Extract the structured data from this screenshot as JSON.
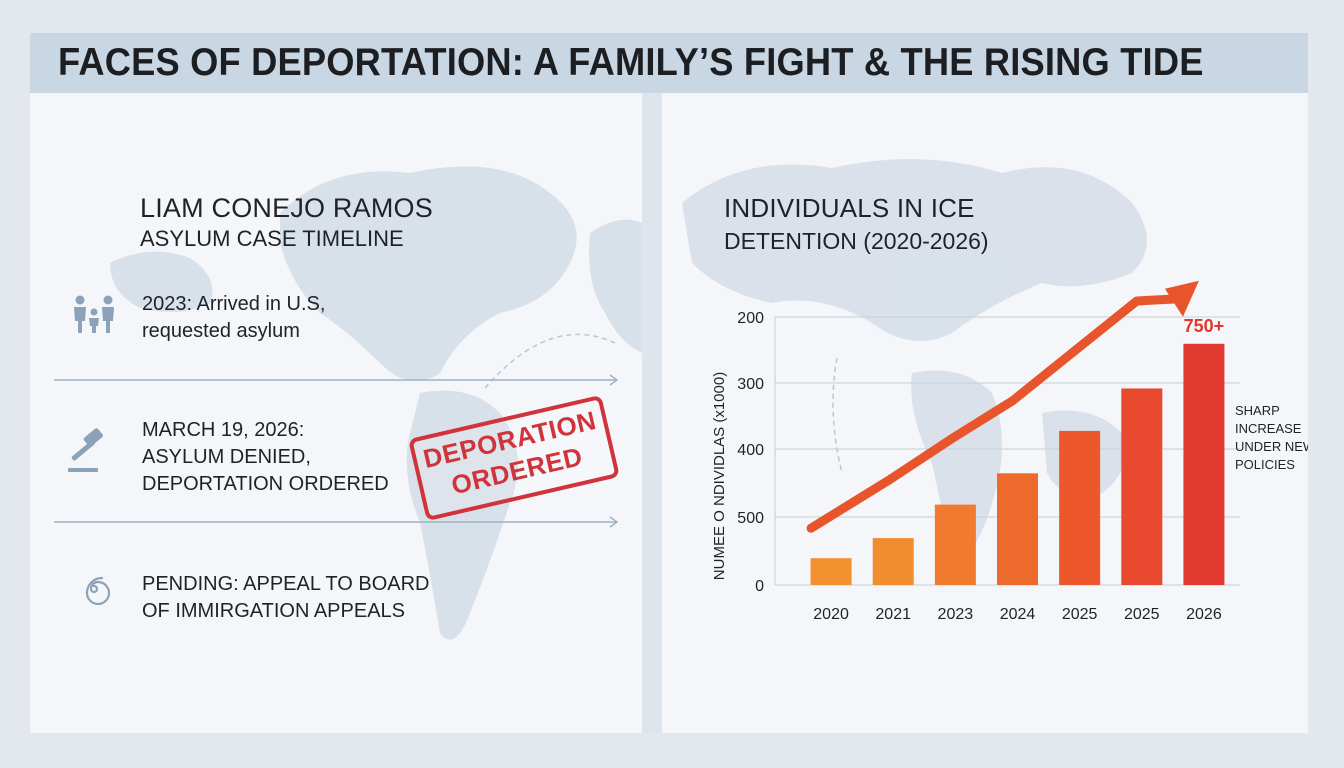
{
  "banner": {
    "title": "FACES OF DEPORTATION: A FAMILY’S FIGHT & THE RISING TIDE"
  },
  "left": {
    "name": "LIAM CONEJO RAMOS",
    "subtitle": "ASYLUM CASE TIMELINE",
    "timeline": [
      {
        "line1": "2023: Arrived in U.S,",
        "line2": "requested asylum",
        "icon": "family-icon"
      },
      {
        "line1": "MARCH 19, 2026:",
        "line2": "ASYLUM DENIED,",
        "line3": "DEPORTATION ORDERED",
        "icon": "gavel-icon"
      },
      {
        "line1": "PENDING: APPEAL TO BOARD",
        "line2": "OF IMMIRGATION APPEALS",
        "icon": "spiral-icon"
      }
    ],
    "stamp": {
      "line1": "DEPORATION",
      "line2": "ORDERED"
    }
  },
  "chart_data": {
    "type": "bar",
    "title_line1": "INDIVIDUALS IN ICE",
    "title_line2": "DETENTION (2020-2026)",
    "ylabel": "NUMEE Ο NDIVIDLAS (x1000)",
    "y_tick_labels": [
      "200",
      "300",
      "400",
      "500",
      "0"
    ],
    "categories": [
      "2020",
      "2021",
      "2023",
      "2024",
      "2025",
      "2025",
      "2026"
    ],
    "values": [
      12,
      21,
      36,
      50,
      69,
      88,
      108
    ],
    "ylim": [
      0,
      120
    ],
    "colors": [
      "#f39030",
      "#f28c30",
      "#f07a2e",
      "#ee6a2c",
      "#ec582c",
      "#e9492e",
      "#e23a30"
    ],
    "top_label": "750+",
    "trend_arrow": true,
    "annotation": [
      "SHARP",
      "INCREASE",
      "UNDER NEW",
      "POLICIES"
    ],
    "grid": true
  },
  "colors": {
    "accent": "#e8542c",
    "stamp": "#d1333a",
    "banner": "#c9d6e3",
    "icon": "#8ca2b8"
  }
}
